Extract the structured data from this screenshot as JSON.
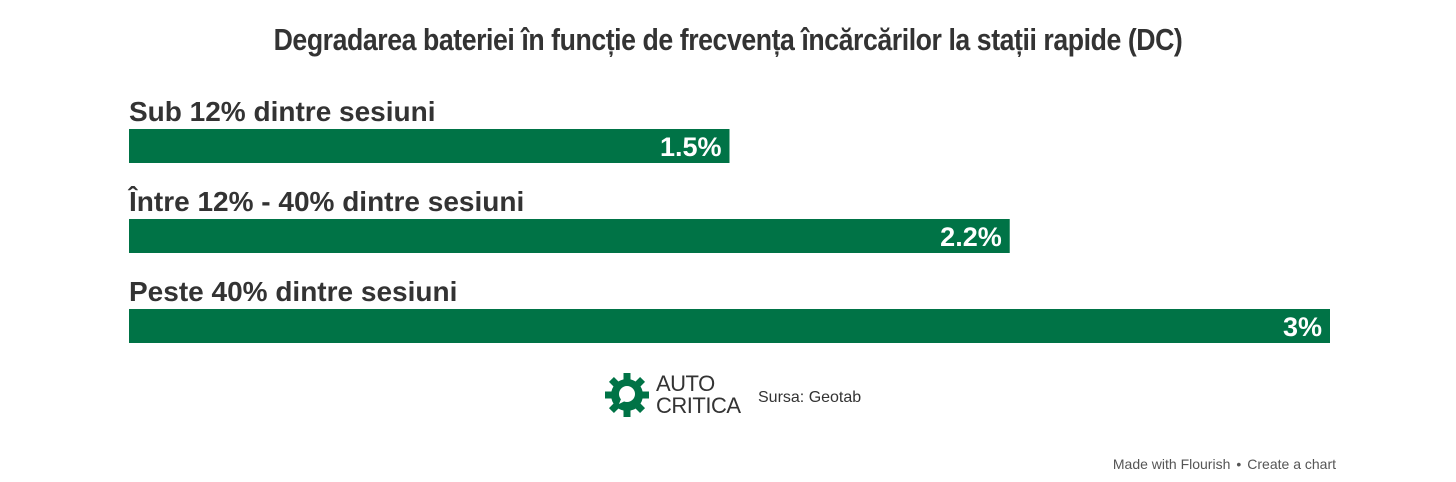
{
  "title": "Degradarea bateriei în funcție de frecvența încărcărilor la stații rapide (DC)",
  "chart_data": {
    "type": "bar",
    "orientation": "horizontal",
    "categories": [
      "Sub 12% dintre sesiuni",
      "Între 12% - 40% dintre sesiuni",
      "Peste 40% dintre sesiuni"
    ],
    "values": [
      1.5,
      2.2,
      3
    ],
    "value_labels": [
      "1.5%",
      "2.2%",
      "3%"
    ],
    "xlim": [
      0,
      3
    ],
    "grid": false,
    "bar_color": "#007346"
  },
  "logo": {
    "line1": "AUTO",
    "line2": "CRITICA",
    "icon": "gear-icon",
    "color": "#007346"
  },
  "source": "Sursa: Geotab",
  "footer": {
    "made_with": "Made with Flourish",
    "separator": "•",
    "create": "Create a chart"
  }
}
